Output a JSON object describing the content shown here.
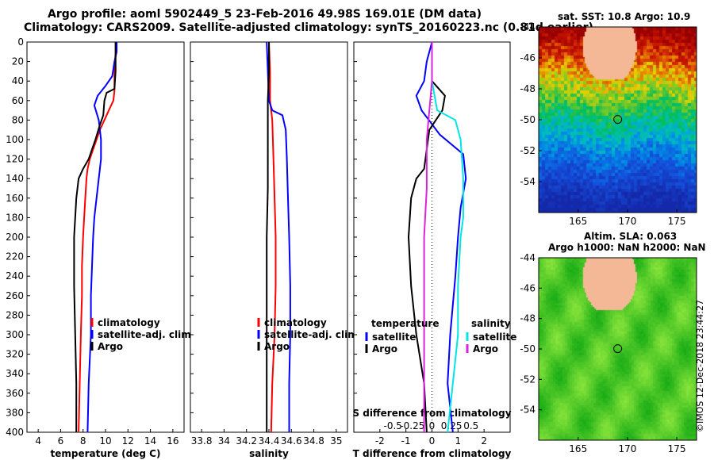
{
  "header": {
    "line1": "Argo profile: aoml 5902449_5 23-Feb-2016 49.98S 169.01E (DM data)",
    "line2": "Climatology: CARS2009. Satellite-adjusted climatology: synTS_20160223.nc (0.81d earlier)"
  },
  "colors": {
    "climatology": "#ff0000",
    "satellite": "#0000ff",
    "argo": "#000000",
    "salinity_sat": "#00e5e5",
    "salinity_clim": "#dd22dd",
    "land": "#f5b896"
  },
  "chart_data": [
    {
      "type": "line",
      "name": "temperature-profile",
      "xlabel": "temperature (deg C)",
      "ylabel": "",
      "xlim": [
        3,
        17
      ],
      "ylim": [
        400,
        0
      ],
      "xticks": [
        4,
        6,
        8,
        10,
        12,
        14,
        16
      ],
      "yticks": [
        0,
        20,
        40,
        60,
        80,
        100,
        120,
        140,
        160,
        180,
        200,
        220,
        240,
        260,
        280,
        300,
        320,
        340,
        360,
        380,
        400
      ],
      "legend": [
        "climatology",
        "satellite-adj. clim.",
        "Argo"
      ],
      "series": [
        {
          "name": "climatology",
          "points": [
            [
              10.9,
              0
            ],
            [
              10.9,
              10
            ],
            [
              10.8,
              30
            ],
            [
              10.8,
              50
            ],
            [
              10.7,
              60
            ],
            [
              10.3,
              70
            ],
            [
              9.9,
              80
            ],
            [
              9.5,
              90
            ],
            [
              9.2,
              100
            ],
            [
              8.9,
              110
            ],
            [
              8.6,
              120
            ],
            [
              8.4,
              130
            ],
            [
              8.3,
              140
            ],
            [
              8.2,
              160
            ],
            [
              8.1,
              180
            ],
            [
              8.0,
              200
            ],
            [
              7.9,
              230
            ],
            [
              7.9,
              260
            ],
            [
              7.8,
              300
            ],
            [
              7.7,
              350
            ],
            [
              7.6,
              400
            ]
          ]
        },
        {
          "name": "satellite-adj. clim.",
          "points": [
            [
              11.0,
              0
            ],
            [
              11.0,
              10
            ],
            [
              10.8,
              20
            ],
            [
              10.6,
              35
            ],
            [
              10.0,
              45
            ],
            [
              9.3,
              55
            ],
            [
              9.0,
              65
            ],
            [
              9.4,
              80
            ],
            [
              9.6,
              100
            ],
            [
              9.6,
              120
            ],
            [
              9.4,
              140
            ],
            [
              9.2,
              160
            ],
            [
              9.0,
              180
            ],
            [
              8.9,
              200
            ],
            [
              8.8,
              230
            ],
            [
              8.7,
              260
            ],
            [
              8.7,
              300
            ],
            [
              8.5,
              350
            ],
            [
              8.4,
              400
            ]
          ]
        },
        {
          "name": "Argo",
          "points": [
            [
              10.9,
              0
            ],
            [
              10.9,
              10
            ],
            [
              10.9,
              30
            ],
            [
              10.8,
              48
            ],
            [
              10.1,
              52
            ],
            [
              9.9,
              60
            ],
            [
              9.8,
              75
            ],
            [
              9.5,
              85
            ],
            [
              9.1,
              100
            ],
            [
              8.8,
              110
            ],
            [
              8.5,
              120
            ],
            [
              8.0,
              130
            ],
            [
              7.6,
              140
            ],
            [
              7.4,
              160
            ],
            [
              7.3,
              180
            ],
            [
              7.2,
              200
            ],
            [
              7.2,
              250
            ],
            [
              7.3,
              300
            ],
            [
              7.4,
              350
            ],
            [
              7.4,
              400
            ]
          ]
        }
      ]
    },
    {
      "type": "line",
      "name": "salinity-profile",
      "xlabel": "salinity",
      "ylabel": "",
      "xlim": [
        33.7,
        35.1
      ],
      "ylim": [
        400,
        0
      ],
      "xticks": [
        33.8,
        34,
        34.2,
        34.4,
        34.6,
        34.8,
        35
      ],
      "legend": [
        "climatology",
        "satellite-adj. clim.",
        "Argo"
      ],
      "series": [
        {
          "name": "climatology",
          "points": [
            [
              34.4,
              0
            ],
            [
              34.41,
              30
            ],
            [
              34.41,
              60
            ],
            [
              34.43,
              80
            ],
            [
              34.44,
              120
            ],
            [
              34.45,
              160
            ],
            [
              34.46,
              200
            ],
            [
              34.46,
              250
            ],
            [
              34.45,
              300
            ],
            [
              34.43,
              350
            ],
            [
              34.42,
              400
            ]
          ]
        },
        {
          "name": "satellite-adj. clim.",
          "points": [
            [
              34.38,
              0
            ],
            [
              34.39,
              30
            ],
            [
              34.4,
              60
            ],
            [
              34.43,
              70
            ],
            [
              34.52,
              75
            ],
            [
              34.55,
              90
            ],
            [
              34.56,
              120
            ],
            [
              34.57,
              160
            ],
            [
              34.58,
              200
            ],
            [
              34.59,
              250
            ],
            [
              34.59,
              300
            ],
            [
              34.58,
              350
            ],
            [
              34.58,
              400
            ]
          ]
        },
        {
          "name": "Argo",
          "points": [
            [
              34.4,
              0
            ],
            [
              34.4,
              30
            ],
            [
              34.39,
              60
            ],
            [
              34.39,
              100
            ],
            [
              34.39,
              150
            ],
            [
              34.38,
              200
            ],
            [
              34.38,
              250
            ],
            [
              34.38,
              300
            ],
            [
              34.38,
              350
            ],
            [
              34.38,
              400
            ]
          ]
        }
      ]
    },
    {
      "type": "line",
      "name": "difference-profile",
      "xlabel": "T difference from climatology",
      "xlabel_top": "S difference from climatology",
      "xlim": [
        -3,
        3
      ],
      "ylim": [
        400,
        0
      ],
      "xticks": [
        -2,
        -1,
        0,
        1,
        2
      ],
      "sticks_labels": [
        "-0.5",
        "-0.25",
        "0",
        "0.25",
        "0.5"
      ],
      "legend_temperature": {
        "title": "temperature",
        "items": [
          "satellite",
          "Argo"
        ]
      },
      "legend_salinity": {
        "title": "salinity",
        "items": [
          "satellite",
          "Argo"
        ]
      },
      "series": [
        {
          "name": "T satellite",
          "points": [
            [
              0.0,
              0
            ],
            [
              -0.2,
              20
            ],
            [
              -0.3,
              40
            ],
            [
              -0.6,
              55
            ],
            [
              -0.4,
              70
            ],
            [
              0.3,
              95
            ],
            [
              1.2,
              115
            ],
            [
              1.3,
              140
            ],
            [
              1.1,
              170
            ],
            [
              1.0,
              200
            ],
            [
              0.9,
              240
            ],
            [
              0.7,
              300
            ],
            [
              0.6,
              350
            ],
            [
              0.8,
              400
            ]
          ]
        },
        {
          "name": "T Argo",
          "points": [
            [
              0.0,
              0
            ],
            [
              0.0,
              20
            ],
            [
              0.0,
              40
            ],
            [
              0.5,
              55
            ],
            [
              0.4,
              70
            ],
            [
              -0.1,
              90
            ],
            [
              -0.2,
              110
            ],
            [
              -0.3,
              130
            ],
            [
              -0.6,
              140
            ],
            [
              -0.8,
              160
            ],
            [
              -0.9,
              200
            ],
            [
              -0.8,
              250
            ],
            [
              -0.6,
              300
            ],
            [
              -0.3,
              350
            ],
            [
              -0.2,
              400
            ]
          ]
        },
        {
          "name": "S satellite",
          "points": [
            [
              0.0,
              0
            ],
            [
              0.0,
              40
            ],
            [
              0.2,
              70
            ],
            [
              0.9,
              80
            ],
            [
              1.1,
              100
            ],
            [
              1.2,
              140
            ],
            [
              1.2,
              180
            ],
            [
              1.1,
              200
            ],
            [
              1.0,
              250
            ],
            [
              1.0,
              300
            ],
            [
              0.8,
              350
            ],
            [
              0.6,
              400
            ]
          ]
        },
        {
          "name": "S Argo",
          "points": [
            [
              0.0,
              0
            ],
            [
              0.0,
              40
            ],
            [
              -0.1,
              70
            ],
            [
              -0.2,
              100
            ],
            [
              -0.2,
              150
            ],
            [
              -0.3,
              200
            ],
            [
              -0.3,
              250
            ],
            [
              -0.3,
              300
            ],
            [
              -0.3,
              350
            ],
            [
              -0.3,
              400
            ]
          ]
        }
      ]
    },
    {
      "type": "heatmap",
      "name": "sst-map",
      "title": "sat. SST: 10.8 Argo: 10.9",
      "xticks": [
        165,
        170,
        175
      ],
      "yticks": [
        -44,
        -46,
        -48,
        -50,
        -52,
        -54
      ],
      "xlim": [
        161,
        177
      ],
      "ylim": [
        -56,
        -44
      ],
      "marker": [
        169.01,
        -49.98
      ]
    },
    {
      "type": "heatmap",
      "name": "sla-map",
      "title": "Altim. SLA: 0.063",
      "subtitle": "Argo h1000: NaN h2000: NaN",
      "xticks": [
        165,
        170,
        175
      ],
      "yticks": [
        -44,
        -46,
        -48,
        -50,
        -52,
        -54
      ],
      "xlim": [
        161,
        177
      ],
      "ylim": [
        -56,
        -44
      ],
      "marker": [
        169.01,
        -49.98
      ]
    }
  ],
  "stamp": "©IMOS 12-Dec-2018 23:44:27"
}
